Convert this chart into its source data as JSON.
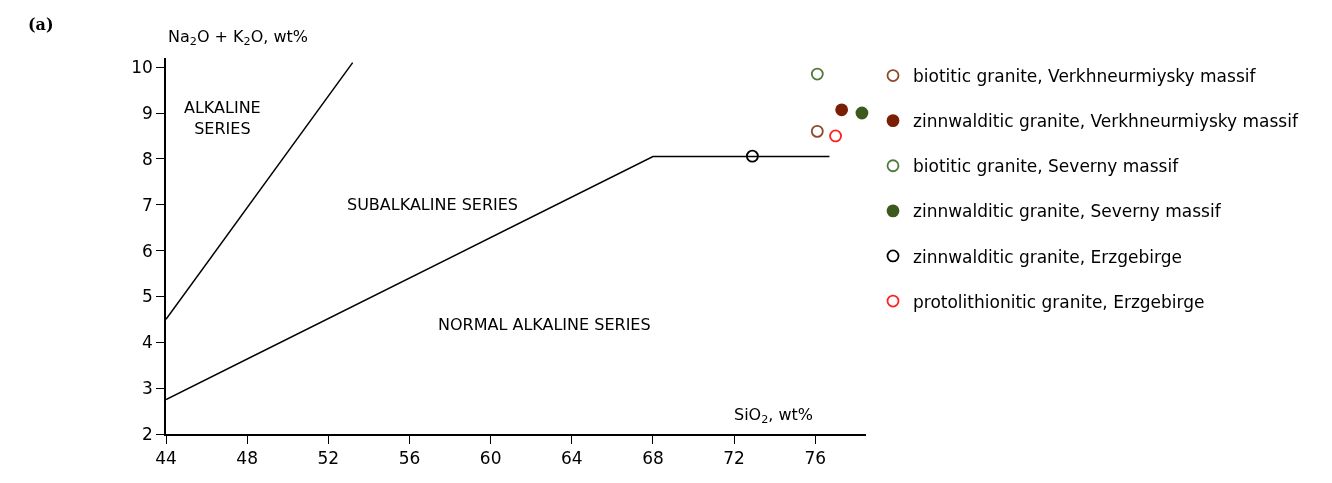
{
  "chart_data": {
    "type": "scatter",
    "xlabel": "SiO$_{2}$, wt%",
    "ylabel": "Na$_{2}$O + K$_{2}$O, wt%",
    "xlim": [
      44,
      78.5
    ],
    "ylim": [
      2,
      10.2
    ],
    "xticks": [
      44,
      48,
      52,
      56,
      60,
      64,
      68,
      72,
      76
    ],
    "yticks": [
      2,
      3,
      4,
      5,
      6,
      7,
      8,
      9,
      10
    ],
    "legend": "right",
    "annotations": [
      "(a)",
      "ALKALINE\nSERIES",
      "SUBALKALINE SERIES",
      "NORMAL ALKALINE SERIES"
    ],
    "series": [
      {
        "type": "line",
        "color": "#000000",
        "marker": "none",
        "x": [
          44,
          53.2
        ],
        "values": [
          4.5,
          10.1
        ]
      },
      {
        "type": "line",
        "color": "#000000",
        "marker": "none",
        "x": [
          44,
          68,
          76.7
        ],
        "values": [
          2.75,
          8.05,
          8.05
        ]
      },
      {
        "name": "biotitic granite, Verkhneurmiysky massif",
        "color": "#8b4a2b",
        "marker": "circle-open",
        "x": [
          76.1
        ],
        "values": [
          8.6
        ]
      },
      {
        "name": "zinnwalditic granite, Verkhneurmiysky massif",
        "color": "#7a1f05",
        "marker": "circle",
        "x": [
          77.3
        ],
        "values": [
          9.07
        ]
      },
      {
        "name": "biotitic granite, Severny massif",
        "color": "#4f7a3a",
        "marker": "circle-open",
        "x": [
          76.1
        ],
        "values": [
          9.85
        ]
      },
      {
        "name": "zinnwalditic granite, Severny massif",
        "color": "#3d5a1e",
        "marker": "circle",
        "x": [
          78.3
        ],
        "values": [
          9.0
        ]
      },
      {
        "name": "zinnwalditic granite, Erzgebirge",
        "color": "#000000",
        "marker": "circle-open",
        "x": [
          72.9
        ],
        "values": [
          8.06
        ]
      },
      {
        "name": "protolithionitic granite, Erzgebirge",
        "color": "#ff2020",
        "marker": "circle-open",
        "x": [
          77.0
        ],
        "values": [
          8.5
        ]
      }
    ]
  }
}
